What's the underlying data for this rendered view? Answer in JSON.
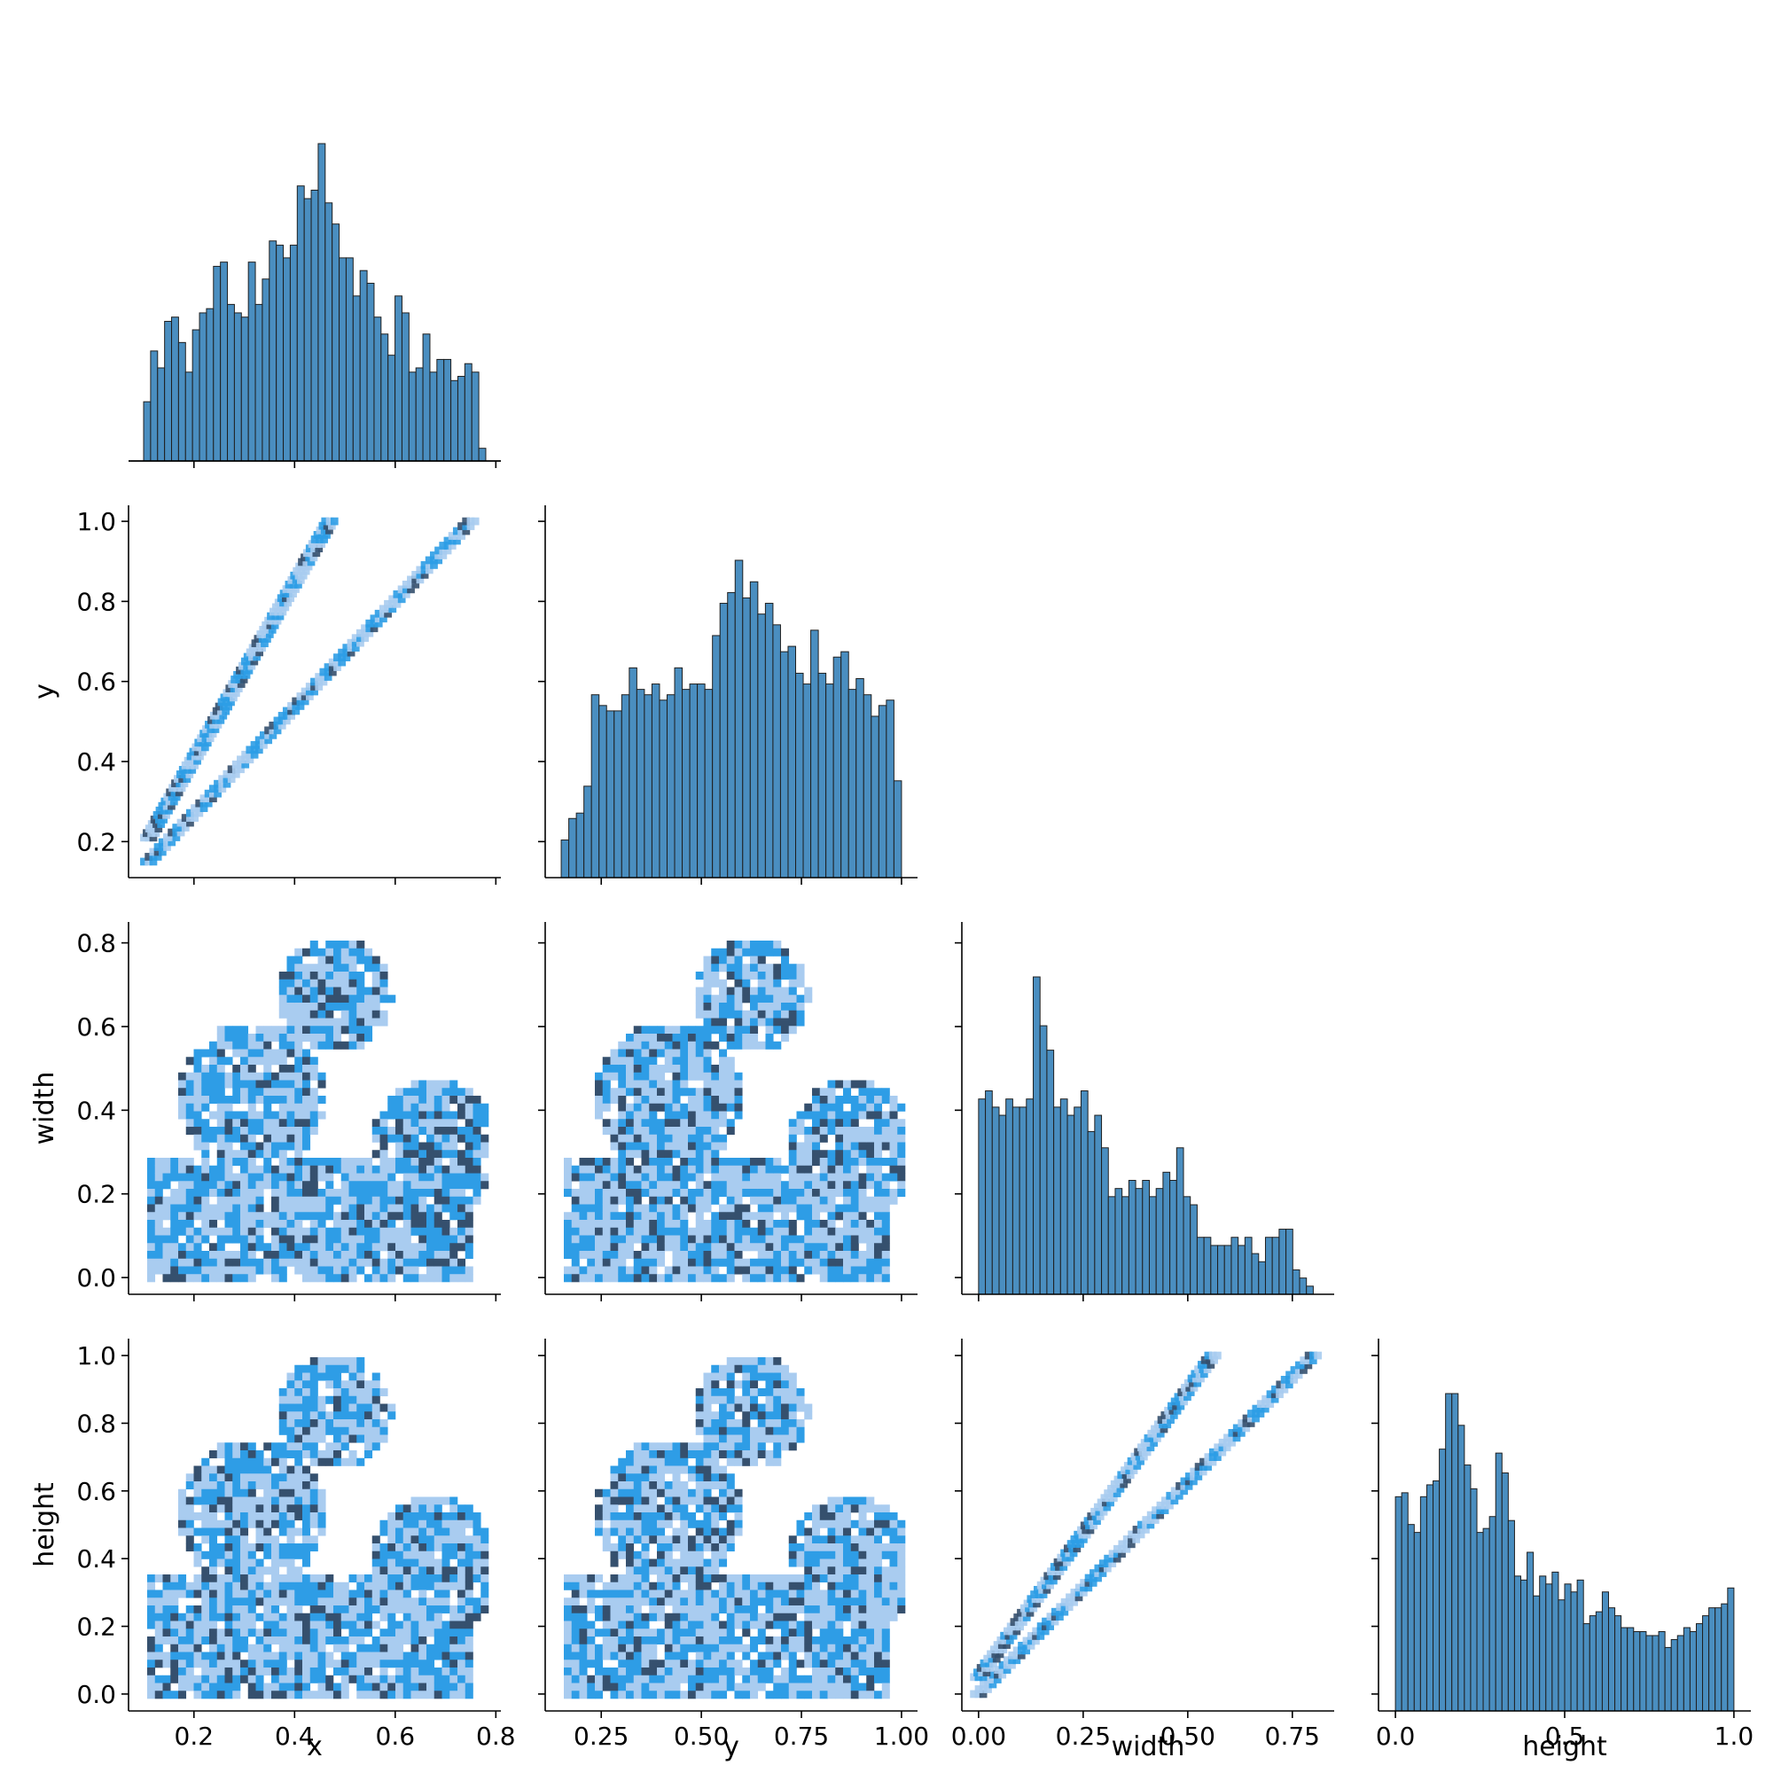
{
  "chart_data": {
    "type": "pairplot",
    "layout": "lower-triangle (corner)",
    "variables": [
      "x",
      "y",
      "width",
      "height"
    ],
    "colors": {
      "histogram_fill": "#4a8ec0",
      "histogram_edge": "#1f1f1f",
      "density_low": "#a9ccf0",
      "density_mid": "#2e9de6",
      "density_high": "#35506e"
    },
    "axes": {
      "x": {
        "label": "x",
        "range": [
          0.07,
          0.81
        ],
        "ticks": [
          0.2,
          0.4,
          0.6,
          0.8
        ],
        "tick_labels": [
          "0.2",
          "0.4",
          "0.6",
          "0.8"
        ]
      },
      "y": {
        "label": "y",
        "range": [
          0.11,
          1.04
        ],
        "ticks": [
          0.25,
          0.5,
          0.75,
          1.0
        ],
        "tick_labels": [
          "0.25",
          "0.50",
          "0.75",
          "1.00"
        ],
        "row_ticks": [
          0.2,
          0.4,
          0.6,
          0.8,
          1.0
        ],
        "row_tick_labels": [
          "0.2",
          "0.4",
          "0.6",
          "0.8",
          "1.0"
        ]
      },
      "width": {
        "label": "width",
        "range": [
          -0.04,
          0.85
        ],
        "ticks": [
          0.0,
          0.25,
          0.5,
          0.75
        ],
        "tick_labels": [
          "0.00",
          "0.25",
          "0.50",
          "0.75"
        ],
        "row_ticks": [
          0.0,
          0.2,
          0.4,
          0.6,
          0.8
        ],
        "row_tick_labels": [
          "0.0",
          "0.2",
          "0.4",
          "0.6",
          "0.8"
        ]
      },
      "height": {
        "label": "height",
        "range": [
          -0.05,
          1.05
        ],
        "ticks": [
          0.0,
          0.5,
          1.0
        ],
        "tick_labels": [
          "0.0",
          "0.5",
          "1.0"
        ],
        "row_ticks": [
          0.0,
          0.2,
          0.4,
          0.6,
          0.8,
          1.0
        ],
        "row_tick_labels": [
          "0.0",
          "0.2",
          "0.4",
          "0.6",
          "0.8",
          "1.0"
        ]
      }
    },
    "histograms": {
      "x": {
        "bin_range": [
          0.1,
          0.78
        ],
        "counts": [
          14,
          26,
          22,
          33,
          34,
          28,
          21,
          31,
          35,
          36,
          46,
          47,
          37,
          35,
          34,
          47,
          37,
          43,
          52,
          51,
          48,
          51,
          65,
          62,
          64,
          75,
          61,
          56,
          48,
          48,
          39,
          45,
          42,
          34,
          30,
          25,
          39,
          35,
          21,
          22,
          30,
          21,
          24,
          24,
          19,
          20,
          23,
          21,
          3
        ]
      },
      "y": {
        "bin_range": [
          0.15,
          1.0
        ],
        "counts": [
          7,
          11,
          12,
          17,
          34,
          32,
          31,
          31,
          34,
          39,
          35,
          34,
          36,
          33,
          34,
          39,
          35,
          36,
          36,
          35,
          45,
          51,
          53,
          59,
          52,
          55,
          49,
          51,
          47,
          42,
          43,
          38,
          36,
          46,
          38,
          36,
          41,
          42,
          35,
          37,
          34,
          30,
          32,
          33,
          18
        ]
      },
      "width": {
        "bin_range": [
          0.0,
          0.8
        ],
        "counts": [
          24,
          25,
          23,
          22,
          24,
          23,
          23,
          24,
          39,
          33,
          30,
          23,
          24,
          22,
          23,
          25,
          20,
          22,
          18,
          12,
          13,
          12,
          14,
          13,
          14,
          12,
          13,
          15,
          14,
          18,
          12,
          11,
          7,
          7,
          6,
          6,
          6,
          7,
          6,
          7,
          5,
          4,
          7,
          7,
          8,
          8,
          3,
          2,
          1
        ]
      },
      "height": {
        "bin_range": [
          0.0,
          1.0
        ],
        "counts": [
          54,
          55,
          47,
          45,
          54,
          57,
          58,
          66,
          80,
          80,
          72,
          62,
          56,
          45,
          46,
          49,
          65,
          60,
          48,
          34,
          33,
          40,
          29,
          34,
          32,
          35,
          28,
          32,
          30,
          33,
          22,
          24,
          25,
          30,
          26,
          24,
          21,
          21,
          20,
          20,
          19,
          19,
          20,
          16,
          18,
          19,
          21,
          20,
          22,
          24,
          26,
          26,
          27,
          31
        ]
      }
    },
    "scatter_histograms": [
      {
        "x": "x",
        "y": "y",
        "pattern": "two-parallel-bands",
        "bands": [
          [
            0.11,
            0.15,
            0.75,
            1.0
          ],
          [
            0.11,
            0.21,
            0.47,
            1.0
          ]
        ]
      },
      {
        "x": "x",
        "y": "width",
        "pattern": "dense-blobs"
      },
      {
        "x": "y",
        "y": "width",
        "pattern": "dense-blobs"
      },
      {
        "x": "x",
        "y": "height",
        "pattern": "dense-blobs"
      },
      {
        "x": "y",
        "y": "height",
        "pattern": "dense-blobs"
      },
      {
        "x": "width",
        "y": "height",
        "pattern": "two-parallel-bands",
        "bands": [
          [
            0.0,
            0.0,
            0.8,
            1.0
          ],
          [
            0.0,
            0.05,
            0.56,
            1.0
          ]
        ]
      }
    ]
  }
}
